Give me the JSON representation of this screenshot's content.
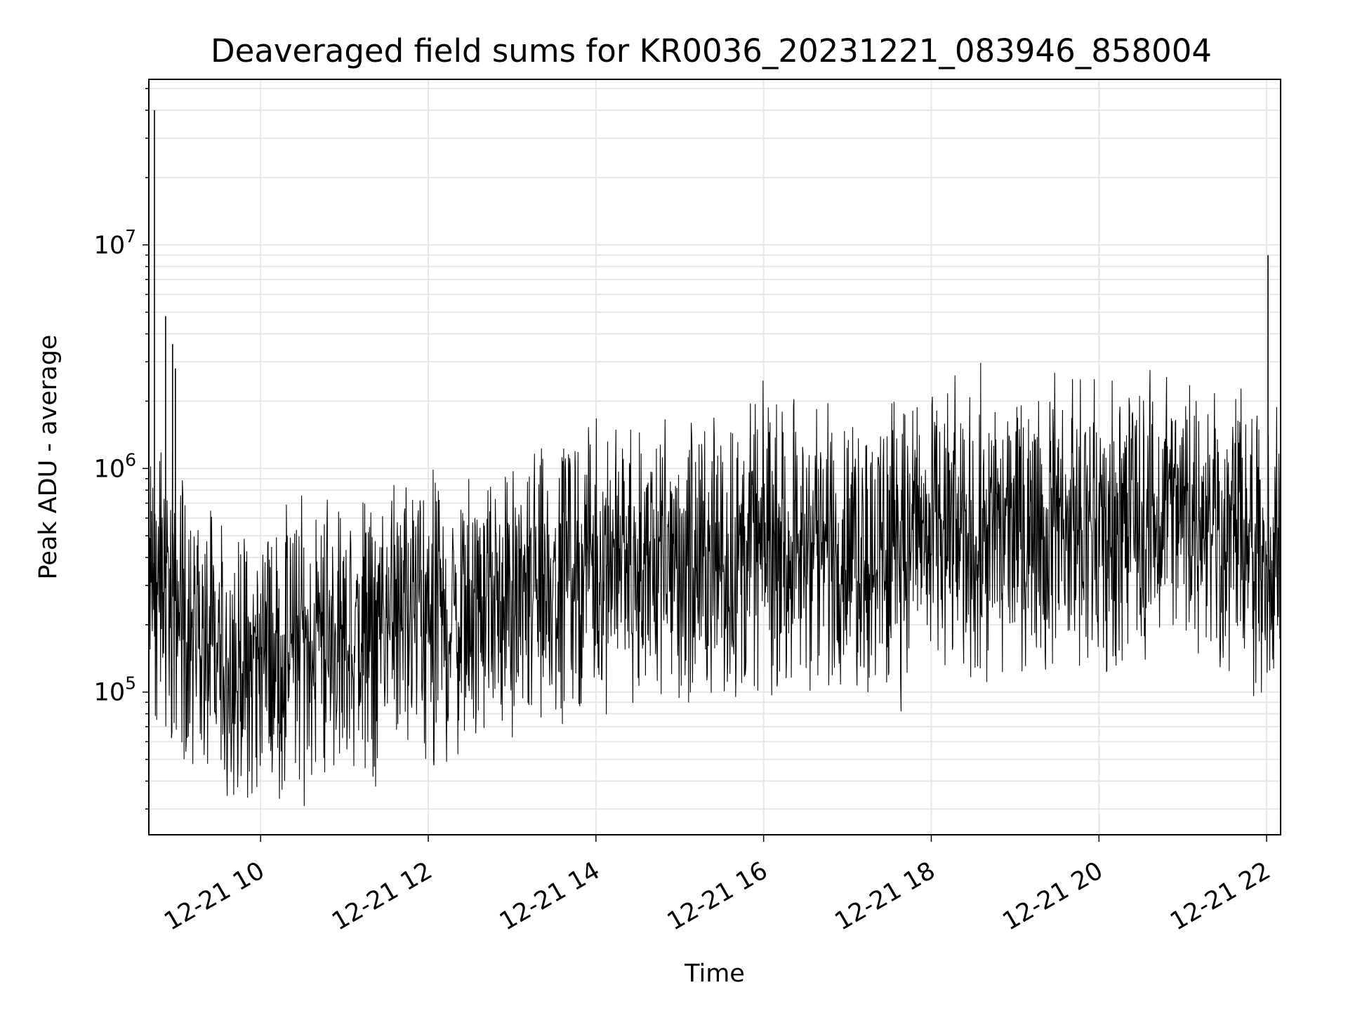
{
  "chart_data": {
    "type": "line",
    "title": "Deaveraged field sums for KR0036_20231221_083946_858004",
    "xlabel": "Time",
    "ylabel": "Peak ADU - average",
    "y_scale": "log",
    "xlim": [
      "2023-12-21 08:40",
      "2023-12-21 22:10"
    ],
    "ylim": [
      23000,
      55000000
    ],
    "grid": true,
    "line_color": "#000000",
    "grid_color": "#e6e6e6",
    "x_ticks": [
      {
        "value": "2023-12-21 10:00",
        "label": "12-21 10"
      },
      {
        "value": "2023-12-21 12:00",
        "label": "12-21 12"
      },
      {
        "value": "2023-12-21 14:00",
        "label": "12-21 14"
      },
      {
        "value": "2023-12-21 16:00",
        "label": "12-21 16"
      },
      {
        "value": "2023-12-21 18:00",
        "label": "12-21 18"
      },
      {
        "value": "2023-12-21 20:00",
        "label": "12-21 20"
      },
      {
        "value": "2023-12-21 22:00",
        "label": "12-21 22"
      }
    ],
    "y_ticks": [
      {
        "value": 100000,
        "base": "10",
        "exp": "5"
      },
      {
        "value": 1000000,
        "base": "10",
        "exp": "6"
      },
      {
        "value": 10000000,
        "base": "10",
        "exp": "7"
      }
    ],
    "series": [
      {
        "x": [
          "2023-12-21 08:40",
          "2023-12-21 08:45",
          "2023-12-21 08:50",
          "2023-12-21 08:55",
          "2023-12-21 09:00",
          "2023-12-21 09:10",
          "2023-12-21 09:20",
          "2023-12-21 09:30",
          "2023-12-21 09:40",
          "2023-12-21 10:00",
          "2023-12-21 10:30",
          "2023-12-21 11:00",
          "2023-12-21 11:30",
          "2023-12-21 12:00",
          "2023-12-21 12:30",
          "2023-12-21 13:00",
          "2023-12-21 13:20",
          "2023-12-21 13:40",
          "2023-12-21 14:00",
          "2023-12-21 14:30",
          "2023-12-21 15:00",
          "2023-12-21 15:30",
          "2023-12-21 16:00",
          "2023-12-21 16:30",
          "2023-12-21 17:00",
          "2023-12-21 17:30",
          "2023-12-21 18:00",
          "2023-12-21 18:30",
          "2023-12-21 19:00",
          "2023-12-21 19:30",
          "2023-12-21 20:00",
          "2023-12-21 20:30",
          "2023-12-21 21:00",
          "2023-12-21 21:30",
          "2023-12-21 21:50",
          "2023-12-21 22:00",
          "2023-12-21 22:10"
        ],
        "y": [
          300000,
          250000,
          300000,
          280000,
          250000,
          200000,
          150000,
          130000,
          140000,
          150000,
          160000,
          170000,
          190000,
          200000,
          210000,
          240000,
          300000,
          380000,
          390000,
          380000,
          380000,
          400000,
          430000,
          430000,
          450000,
          460000,
          480000,
          520000,
          560000,
          560000,
          580000,
          600000,
          650000,
          550000,
          400000,
          420000,
          450000
        ]
      }
    ],
    "spikes": [
      {
        "x": "2023-12-21 08:44",
        "y": 40000000
      },
      {
        "x": "2023-12-21 08:52",
        "y": 4800000
      },
      {
        "x": "2023-12-21 08:57",
        "y": 3600000
      },
      {
        "x": "2023-12-21 08:59",
        "y": 2800000
      },
      {
        "x": "2023-12-21 22:01",
        "y": 9000000
      }
    ]
  }
}
